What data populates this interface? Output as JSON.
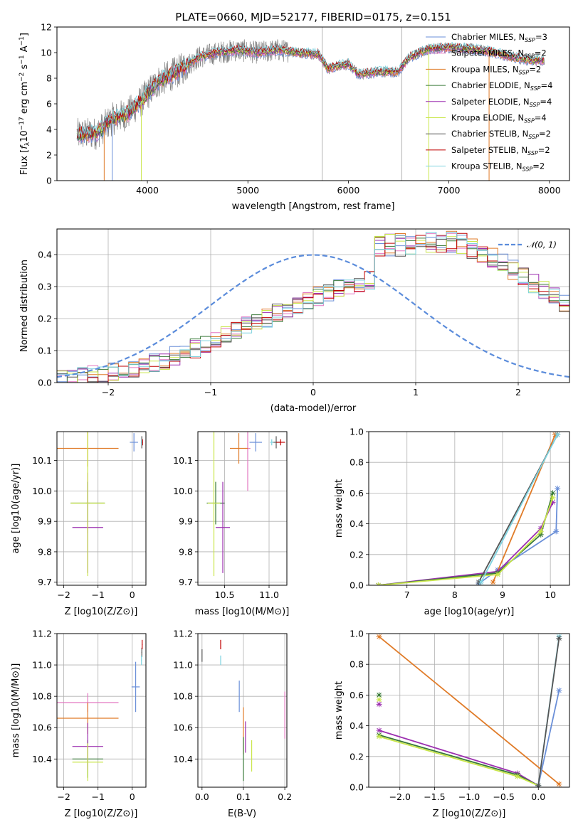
{
  "colors": {
    "chabrier_miles": "#6a8fd8",
    "salpeter_miles": "#e377c2",
    "kroupa_miles": "#e07b28",
    "chabrier_elodie": "#3a7a3a",
    "salpeter_elodie": "#9c2fb0",
    "kroupa_elodie": "#c9e64a",
    "chabrier_stelib": "#555555",
    "salpeter_stelib": "#c00000",
    "kroupa_stelib": "#7fd3e0",
    "data": "#808080",
    "normal": "#5b8cdb"
  },
  "chart_data": [
    {
      "type": "line",
      "title": "PLATE=0660, MJD=52177, FIBERID=0175, z=0.151",
      "xlabel": "wavelength [Angstrom, rest frame]",
      "ylabel_parts": [
        "Flux [",
        "f",
        "λ",
        "10",
        "−17",
        " erg cm",
        "−2",
        " s",
        "−1",
        " A",
        "−1",
        "]"
      ],
      "xlim": [
        3100,
        8200
      ],
      "ylim": [
        0,
        12
      ],
      "xticks": [
        "4000",
        "5000",
        "6000",
        "7000",
        "8000"
      ],
      "yticks": [
        "0",
        "2",
        "4",
        "6",
        "8",
        "10",
        "12"
      ],
      "legend_location": "top-right",
      "legend": [
        {
          "pre": "Chabrier MILES, N",
          "sub": "SSP",
          "post": "=3"
        },
        {
          "pre": "Salpeter MILES, N",
          "sub": "SSP",
          "post": "=2"
        },
        {
          "pre": "Kroupa MILES, N",
          "sub": "SSP",
          "post": "=2"
        },
        {
          "pre": "Chabrier ELODIE, N",
          "sub": "SSP",
          "post": "=4"
        },
        {
          "pre": "Salpeter ELODIE, N",
          "sub": "SSP",
          "post": "=4"
        },
        {
          "pre": "Kroupa ELODIE, N",
          "sub": "SSP",
          "post": "=4"
        },
        {
          "pre": "Chabrier STELIB, N",
          "sub": "SSP",
          "post": "=2"
        },
        {
          "pre": "Salpeter STELIB, N",
          "sub": "SSP",
          "post": "=2"
        },
        {
          "pre": "Kroupa STELIB, N",
          "sub": "SSP",
          "post": "=2"
        }
      ],
      "continuum": [
        [
          3300,
          3.6
        ],
        [
          3500,
          3.7
        ],
        [
          3650,
          4.8
        ],
        [
          3800,
          5.2
        ],
        [
          3950,
          6.3
        ],
        [
          4100,
          7.7
        ],
        [
          4300,
          8.5
        ],
        [
          4500,
          9.6
        ],
        [
          4700,
          10.0
        ],
        [
          4900,
          10.2
        ],
        [
          5100,
          10.0
        ],
        [
          5300,
          10.2
        ],
        [
          5500,
          10.0
        ],
        [
          5700,
          9.9
        ],
        [
          5800,
          8.7
        ],
        [
          5900,
          9.0
        ],
        [
          6000,
          9.1
        ],
        [
          6100,
          8.3
        ],
        [
          6300,
          8.5
        ],
        [
          6500,
          8.5
        ],
        [
          6600,
          9.6
        ],
        [
          6800,
          10.3
        ],
        [
          7000,
          10.4
        ],
        [
          7200,
          10.3
        ],
        [
          7400,
          10.1
        ],
        [
          7600,
          9.7
        ],
        [
          7800,
          9.4
        ],
        [
          7950,
          9.4
        ]
      ]
    },
    {
      "type": "histogram",
      "xlabel": "(data-model)/error",
      "ylabel": "Normed distribution",
      "xlim": [
        -2.5,
        2.5
      ],
      "ylim": [
        0,
        0.48
      ],
      "xticks": [
        "−2",
        "−1",
        "0",
        "1",
        "2"
      ],
      "yticks": [
        "0.0",
        "0.1",
        "0.2",
        "0.3",
        "0.4"
      ],
      "legend_location": "top-right",
      "legend": [
        "𝒩(0, 1)"
      ],
      "bin_width": 0.1,
      "bin_start": -2.5,
      "model_shape": [
        0.012,
        0.015,
        0.018,
        0.022,
        0.026,
        0.032,
        0.038,
        0.045,
        0.053,
        0.062,
        0.072,
        0.083,
        0.095,
        0.108,
        0.121,
        0.135,
        0.149,
        0.163,
        0.177,
        0.192,
        0.206,
        0.22,
        0.233,
        0.246,
        0.258,
        0.27,
        0.281,
        0.292,
        0.302,
        0.312,
        0.322,
        0.333,
        0.345,
        0.357,
        0.368,
        0.378,
        0.386,
        0.393,
        0.398,
        0.4,
        0.399,
        0.394,
        0.386,
        0.375,
        0.362,
        0.348,
        0.333,
        0.318,
        0.303,
        0.288
      ]
    },
    {
      "type": "scatter",
      "xlabel": "Z [log10(Z/Z⊙)]",
      "ylabel": "age [log10(age/yr)]",
      "xlim": [
        -2.2,
        0.4
      ],
      "ylim": [
        9.69,
        10.195
      ],
      "xticks": [
        "−2",
        "−1",
        "0"
      ],
      "yticks": [
        "9.7",
        "9.8",
        "9.9",
        "10.0",
        "10.1"
      ],
      "points": [
        {
          "model": "chabrier_miles",
          "x": 0.05,
          "y": 10.16,
          "xerr": 0.12,
          "yerr": 0.03
        },
        {
          "model": "salpeter_miles",
          "x": -1.3,
          "y": 9.96,
          "xerr": 0.05,
          "yerr": 0.1
        },
        {
          "model": "kroupa_miles",
          "x": -1.3,
          "y": 10.14,
          "xerr": 0.9,
          "yerr": 0.06
        },
        {
          "model": "chabrier_elodie",
          "x": -1.3,
          "y": 9.96,
          "xerr": 0.5,
          "yerr": 0.07
        },
        {
          "model": "salpeter_elodie",
          "x": -1.3,
          "y": 9.88,
          "xerr": 0.45,
          "yerr": 0.15
        },
        {
          "model": "kroupa_elodie",
          "x": -1.3,
          "y": 9.96,
          "xerr": 0.5,
          "yerr": 0.24
        },
        {
          "model": "chabrier_stelib",
          "x": 0.28,
          "y": 10.16,
          "xerr": 0.02,
          "yerr": 0.02
        },
        {
          "model": "salpeter_stelib",
          "x": 0.3,
          "y": 10.16,
          "xerr": 0.01,
          "yerr": 0.01
        },
        {
          "model": "kroupa_stelib",
          "x": 0.27,
          "y": 10.16,
          "xerr": 0.01,
          "yerr": 0.01
        }
      ]
    },
    {
      "type": "scatter",
      "xlabel": "mass [log10(M/M⊙)]",
      "ylabel": "",
      "xlim": [
        10.2,
        11.2
      ],
      "ylim": [
        9.69,
        10.195
      ],
      "xticks": [
        "10.5",
        "11.0"
      ],
      "yticks": [
        "9.7",
        "9.8",
        "9.9",
        "10.0",
        "10.1"
      ],
      "points": [
        {
          "model": "chabrier_miles",
          "x": 10.85,
          "y": 10.16,
          "xerr": 0.07,
          "yerr": 0.03
        },
        {
          "model": "salpeter_miles",
          "x": 10.76,
          "y": 10.14,
          "xerr": 0.03,
          "yerr": 0.14
        },
        {
          "model": "kroupa_miles",
          "x": 10.66,
          "y": 10.14,
          "xerr": 0.1,
          "yerr": 0.05
        },
        {
          "model": "chabrier_elodie",
          "x": 10.4,
          "y": 9.96,
          "xerr": 0.1,
          "yerr": 0.07
        },
        {
          "model": "salpeter_elodie",
          "x": 10.48,
          "y": 9.88,
          "xerr": 0.08,
          "yerr": 0.15
        },
        {
          "model": "kroupa_elodie",
          "x": 10.38,
          "y": 9.96,
          "xerr": 0.07,
          "yerr": 0.24
        },
        {
          "model": "chabrier_stelib",
          "x": 11.08,
          "y": 10.16,
          "xerr": 0.05,
          "yerr": 0.02
        },
        {
          "model": "salpeter_stelib",
          "x": 11.13,
          "y": 10.16,
          "xerr": 0.05,
          "yerr": 0.01
        },
        {
          "model": "kroupa_stelib",
          "x": 11.03,
          "y": 10.16,
          "xerr": 0.02,
          "yerr": 0.01
        }
      ]
    },
    {
      "type": "line",
      "xlabel": "age [log10(age/yr)]",
      "ylabel": "mass weight",
      "xlim": [
        6.2,
        10.4
      ],
      "ylim": [
        0,
        1
      ],
      "xticks": [
        "7",
        "8",
        "9",
        "10"
      ],
      "yticks": [
        "0.0",
        "0.2",
        "0.4",
        "0.6",
        "0.8",
        "1.0"
      ],
      "series": [
        {
          "model": "chabrier_miles",
          "x": [
            8.5,
            8.9,
            10.12,
            10.15
          ],
          "y": [
            0.01,
            0.1,
            0.35,
            0.63
          ]
        },
        {
          "model": "kroupa_miles",
          "x": [
            8.8,
            10.1
          ],
          "y": [
            0.02,
            0.98
          ]
        },
        {
          "model": "salpeter_elodie",
          "x": [
            6.4,
            8.9,
            9.8,
            10.05
          ],
          "y": [
            0.0,
            0.09,
            0.37,
            0.54
          ]
        },
        {
          "model": "chabrier_elodie",
          "x": [
            6.4,
            8.9,
            9.8,
            10.05
          ],
          "y": [
            0.0,
            0.08,
            0.33,
            0.6
          ]
        },
        {
          "model": "kroupa_elodie",
          "x": [
            6.4,
            8.9,
            9.8,
            10.05
          ],
          "y": [
            0.0,
            0.07,
            0.35,
            0.57
          ]
        },
        {
          "model": "chabrier_stelib",
          "x": [
            8.5,
            10.15
          ],
          "y": [
            0.02,
            0.98
          ]
        },
        {
          "model": "kroupa_stelib",
          "x": [
            8.55,
            10.15
          ],
          "y": [
            0.02,
            0.98
          ]
        }
      ]
    },
    {
      "type": "scatter",
      "xlabel": "Z [log10(Z/Z⊙)]",
      "ylabel": "mass [log10(M/M⊙)]",
      "xlim": [
        -2.2,
        0.4
      ],
      "ylim": [
        10.22,
        11.2
      ],
      "xticks": [
        "−2",
        "−1",
        "0"
      ],
      "yticks": [
        "10.4",
        "10.6",
        "10.8",
        "11.0",
        "11.2"
      ],
      "points": [
        {
          "model": "chabrier_miles",
          "x": 0.1,
          "y": 10.86,
          "xerr": 0.12,
          "yerr": 0.16
        },
        {
          "model": "salpeter_miles",
          "x": -1.3,
          "y": 10.76,
          "xerr": 0.9,
          "yerr": 0.06
        },
        {
          "model": "kroupa_miles",
          "x": -1.3,
          "y": 10.66,
          "xerr": 0.9,
          "yerr": 0.1
        },
        {
          "model": "chabrier_elodie",
          "x": -1.3,
          "y": 10.4,
          "xerr": 0.45,
          "yerr": 0.12
        },
        {
          "model": "salpeter_elodie",
          "x": -1.3,
          "y": 10.48,
          "xerr": 0.45,
          "yerr": 0.15
        },
        {
          "model": "kroupa_elodie",
          "x": -1.3,
          "y": 10.38,
          "xerr": 0.45,
          "yerr": 0.12
        },
        {
          "model": "chabrier_stelib",
          "x": 0.28,
          "y": 11.08,
          "xerr": 0.01,
          "yerr": 0.03
        },
        {
          "model": "salpeter_stelib",
          "x": 0.29,
          "y": 11.13,
          "xerr": 0.01,
          "yerr": 0.03
        },
        {
          "model": "kroupa_stelib",
          "x": 0.27,
          "y": 11.03,
          "xerr": 0.01,
          "yerr": 0.03
        }
      ]
    },
    {
      "type": "scatter",
      "xlabel": "E(B-V)",
      "ylabel": "",
      "xlim": [
        -0.01,
        0.205
      ],
      "ylim": [
        10.22,
        11.2
      ],
      "xticks": [
        "0.0",
        "0.1",
        "0.2"
      ],
      "yticks": [
        "10.4",
        "10.6",
        "10.8",
        "11.0",
        "11.2"
      ],
      "points": [
        {
          "model": "chabrier_miles",
          "x": 0.09,
          "y": 10.8,
          "xerr": 0,
          "yerr": 0.1
        },
        {
          "model": "salpeter_miles",
          "x": 0.2,
          "y": 10.68,
          "xerr": 0,
          "yerr": 0.15
        },
        {
          "model": "kroupa_miles",
          "x": 0.1,
          "y": 10.58,
          "xerr": 0,
          "yerr": 0.15
        },
        {
          "model": "chabrier_elodie",
          "x": 0.1,
          "y": 10.4,
          "xerr": 0,
          "yerr": 0.14
        },
        {
          "model": "salpeter_elodie",
          "x": 0.105,
          "y": 10.54,
          "xerr": 0,
          "yerr": 0.1
        },
        {
          "model": "kroupa_elodie",
          "x": 0.12,
          "y": 10.42,
          "xerr": 0,
          "yerr": 0.1
        },
        {
          "model": "chabrier_stelib",
          "x": 0.0,
          "y": 11.06,
          "xerr": 0,
          "yerr": 0.04
        },
        {
          "model": "salpeter_stelib",
          "x": 0.045,
          "y": 11.13,
          "xerr": 0,
          "yerr": 0.03
        },
        {
          "model": "kroupa_stelib",
          "x": 0.045,
          "y": 11.03,
          "xerr": 0,
          "yerr": 0.03
        }
      ]
    },
    {
      "type": "line",
      "xlabel": "Z [log10(Z/Z⊙)]",
      "ylabel": "mass weight",
      "xlim": [
        -2.45,
        0.45
      ],
      "ylim": [
        0,
        1
      ],
      "xticks": [
        "−2.0",
        "−1.5",
        "−1.0",
        "−0.5",
        "0.0"
      ],
      "yticks": [
        "0.0",
        "0.2",
        "0.4",
        "0.6",
        "0.8",
        "1.0"
      ],
      "series": [
        {
          "model": "kroupa_miles",
          "x": [
            -2.3,
            0.3
          ],
          "y": [
            0.98,
            0.02
          ]
        },
        {
          "model": "salpeter_elodie",
          "x": [
            -2.3,
            -0.3,
            0.0
          ],
          "y": [
            0.37,
            0.09,
            0.01
          ]
        },
        {
          "model": "chabrier_elodie",
          "x": [
            -2.3,
            -0.3,
            0.0
          ],
          "y": [
            0.34,
            0.08,
            0.01
          ]
        },
        {
          "model": "kroupa_elodie",
          "x": [
            -2.3,
            -0.3,
            0.0
          ],
          "y": [
            0.33,
            0.07,
            0.01
          ]
        },
        {
          "model": "chabrier_miles",
          "x": [
            0.0,
            0.3
          ],
          "y": [
            0.01,
            0.63
          ]
        },
        {
          "model": "kroupa_stelib",
          "x": [
            0.0,
            0.3
          ],
          "y": [
            0.01,
            0.98
          ]
        },
        {
          "model": "chabrier_stelib",
          "x": [
            0.0,
            0.3
          ],
          "y": [
            0.01,
            0.97
          ]
        }
      ],
      "markers": [
        {
          "model": "chabrier_elodie",
          "x": -2.3,
          "y": 0.6
        },
        {
          "model": "kroupa_elodie",
          "x": -2.3,
          "y": 0.57
        },
        {
          "model": "salpeter_elodie",
          "x": -2.3,
          "y": 0.54
        }
      ]
    }
  ]
}
